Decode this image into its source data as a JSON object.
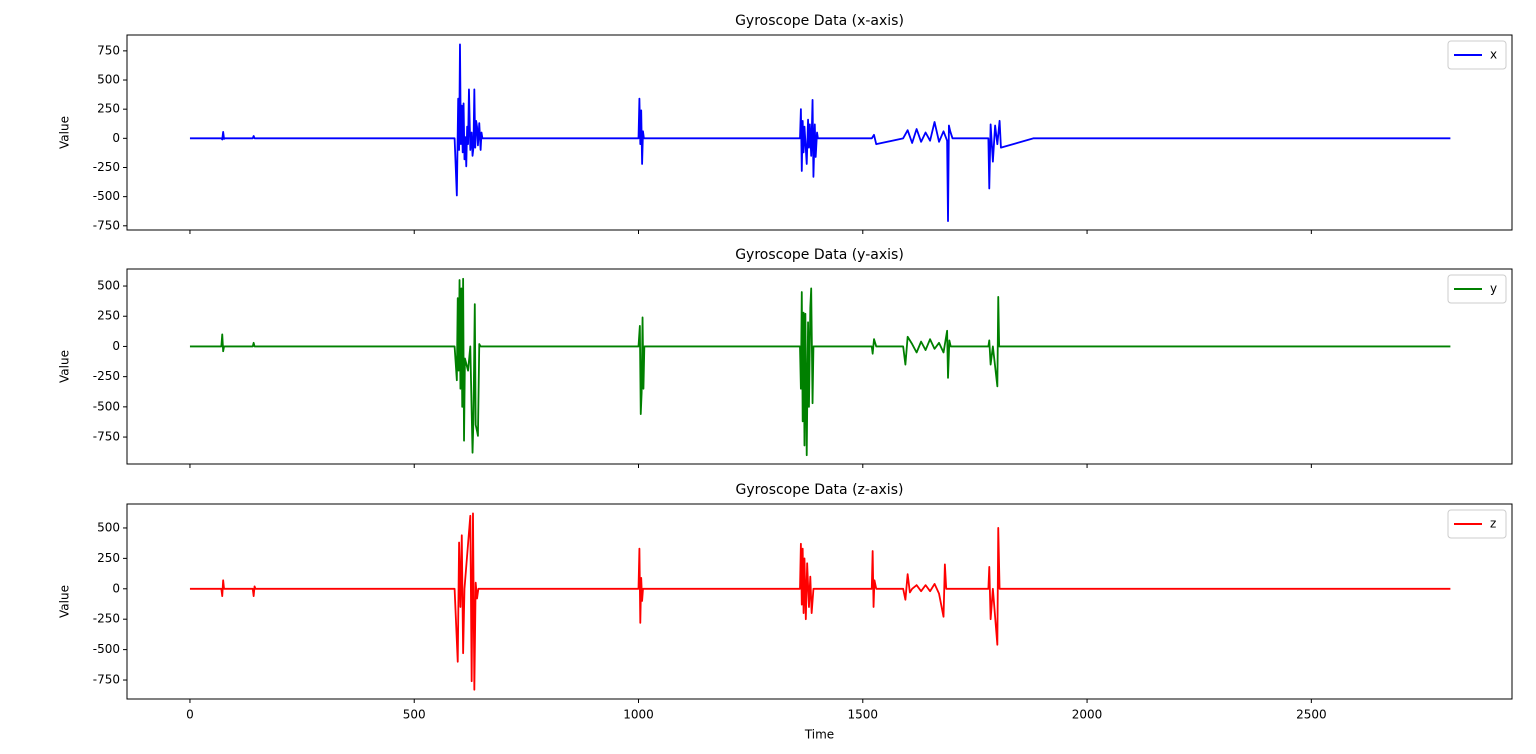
{
  "sharex": true,
  "chart_data": [
    {
      "type": "line",
      "title": "Gyroscope Data (x-axis)",
      "ylabel": "Value",
      "legend": "upper right",
      "x": [
        0,
        70,
        72,
        74,
        76,
        78,
        140,
        142,
        144,
        590,
        595,
        598,
        600,
        602,
        604,
        606,
        608,
        610,
        612,
        614,
        616,
        618,
        620,
        622,
        625,
        628,
        630,
        632,
        634,
        636,
        638,
        640,
        642,
        645,
        648,
        650,
        652,
        655,
        1000,
        1002,
        1004,
        1006,
        1008,
        1010,
        1012,
        1360,
        1362,
        1364,
        1366,
        1368,
        1370,
        1375,
        1378,
        1380,
        1382,
        1385,
        1388,
        1390,
        1393,
        1395,
        1398,
        1400,
        1520,
        1525,
        1530,
        1590,
        1600,
        1610,
        1620,
        1630,
        1640,
        1650,
        1660,
        1670,
        1680,
        1688,
        1690,
        1692,
        1695,
        1700,
        1780,
        1782,
        1785,
        1790,
        1795,
        1800,
        1805,
        1808,
        1880,
        2810
      ],
      "series": [
        {
          "name": "x",
          "color": "#0000ff",
          "values": [
            0,
            0,
            -10,
            55,
            -5,
            0,
            0,
            20,
            0,
            0,
            -490,
            340,
            -100,
            805,
            -50,
            280,
            -120,
            300,
            -180,
            10,
            -240,
            100,
            -50,
            420,
            -100,
            50,
            -150,
            -80,
            420,
            -80,
            150,
            100,
            -60,
            130,
            -100,
            50,
            0,
            0,
            0,
            340,
            -50,
            240,
            -220,
            60,
            0,
            0,
            250,
            -280,
            150,
            -120,
            100,
            -220,
            160,
            -80,
            120,
            -150,
            330,
            -330,
            120,
            -160,
            50,
            0,
            0,
            30,
            -50,
            0,
            70,
            -40,
            80,
            -30,
            50,
            -20,
            140,
            -30,
            60,
            -20,
            -710,
            110,
            60,
            0,
            0,
            -430,
            120,
            -200,
            110,
            -50,
            150,
            -80,
            0,
            0
          ]
        }
      ],
      "xlim": [
        -140.35,
        2947.35
      ],
      "xticks": [
        0,
        500,
        1000,
        1500,
        2000,
        2500
      ],
      "ylim": [
        -786,
        886
      ],
      "yticks": [
        -750,
        -500,
        -250,
        0,
        250,
        500,
        750
      ]
    },
    {
      "type": "line",
      "title": "Gyroscope Data (y-axis)",
      "ylabel": "Value",
      "legend": "upper right",
      "x": [
        0,
        70,
        72,
        74,
        76,
        140,
        142,
        144,
        590,
        595,
        597,
        599,
        601,
        603,
        605,
        607,
        609,
        611,
        613,
        620,
        625,
        630,
        632,
        635,
        637,
        640,
        642,
        645,
        648,
        1000,
        1003,
        1005,
        1007,
        1009,
        1011,
        1013,
        1360,
        1362,
        1364,
        1366,
        1368,
        1370,
        1372,
        1375,
        1378,
        1380,
        1383,
        1385,
        1388,
        1390,
        1520,
        1522,
        1525,
        1530,
        1590,
        1595,
        1600,
        1610,
        1620,
        1630,
        1640,
        1650,
        1660,
        1670,
        1680,
        1688,
        1690,
        1693,
        1696,
        1780,
        1782,
        1785,
        1790,
        1800,
        1802,
        1804,
        2810
      ],
      "series": [
        {
          "name": "y",
          "color": "#008000",
          "values": [
            0,
            0,
            100,
            -40,
            0,
            0,
            30,
            0,
            0,
            -280,
            400,
            -200,
            550,
            -350,
            480,
            -500,
            560,
            -780,
            -100,
            -200,
            0,
            -880,
            -600,
            350,
            -650,
            -700,
            -740,
            20,
            0,
            0,
            170,
            -560,
            -380,
            240,
            -350,
            0,
            0,
            -350,
            450,
            -620,
            280,
            -820,
            270,
            -900,
            200,
            -500,
            320,
            480,
            -470,
            0,
            0,
            -60,
            60,
            0,
            0,
            -150,
            80,
            20,
            -50,
            40,
            -30,
            60,
            -20,
            30,
            -50,
            130,
            -260,
            50,
            0,
            0,
            50,
            -150,
            0,
            -330,
            410,
            0,
            0
          ]
        }
      ],
      "xlim": [
        -140.35,
        2947.35
      ],
      "xticks": [
        0,
        500,
        1000,
        1500,
        2000,
        2500
      ],
      "ylim": [
        -973,
        641
      ],
      "yticks": [
        -750,
        -500,
        -250,
        0,
        250,
        500
      ]
    },
    {
      "type": "line",
      "title": "Gyroscope Data (z-axis)",
      "ylabel": "Value",
      "xlabel": "Time",
      "legend": "upper right",
      "x": [
        0,
        70,
        72,
        74,
        76,
        140,
        142,
        144,
        146,
        590,
        597,
        600,
        603,
        606,
        609,
        612,
        625,
        628,
        631,
        634,
        637,
        640,
        643,
        1000,
        1002,
        1004,
        1006,
        1008,
        1010,
        1360,
        1362,
        1364,
        1366,
        1368,
        1370,
        1373,
        1376,
        1380,
        1383,
        1386,
        1390,
        1520,
        1522,
        1524,
        1526,
        1530,
        1590,
        1595,
        1600,
        1605,
        1610,
        1620,
        1630,
        1640,
        1650,
        1660,
        1670,
        1680,
        1683,
        1686,
        1780,
        1782,
        1785,
        1790,
        1800,
        1802,
        1805,
        2810
      ],
      "series": [
        {
          "name": "z",
          "color": "#ff0000",
          "values": [
            0,
            0,
            -60,
            70,
            0,
            0,
            -60,
            20,
            0,
            0,
            -600,
            380,
            -150,
            440,
            -530,
            0,
            600,
            -760,
            620,
            -830,
            50,
            -80,
            0,
            0,
            330,
            -280,
            90,
            -100,
            0,
            0,
            370,
            -130,
            330,
            -200,
            250,
            -250,
            210,
            -150,
            100,
            -200,
            0,
            0,
            310,
            -150,
            70,
            0,
            0,
            -90,
            120,
            -30,
            0,
            30,
            -20,
            30,
            -20,
            40,
            -40,
            -230,
            200,
            0,
            0,
            180,
            -250,
            0,
            -460,
            500,
            0,
            0
          ]
        }
      ],
      "xlim": [
        -140.35,
        2947.35
      ],
      "xticks": [
        0,
        500,
        1000,
        1500,
        2000,
        2500
      ],
      "ylim": [
        -906,
        697
      ],
      "yticks": [
        -750,
        -500,
        -250,
        0,
        250,
        500
      ]
    }
  ]
}
